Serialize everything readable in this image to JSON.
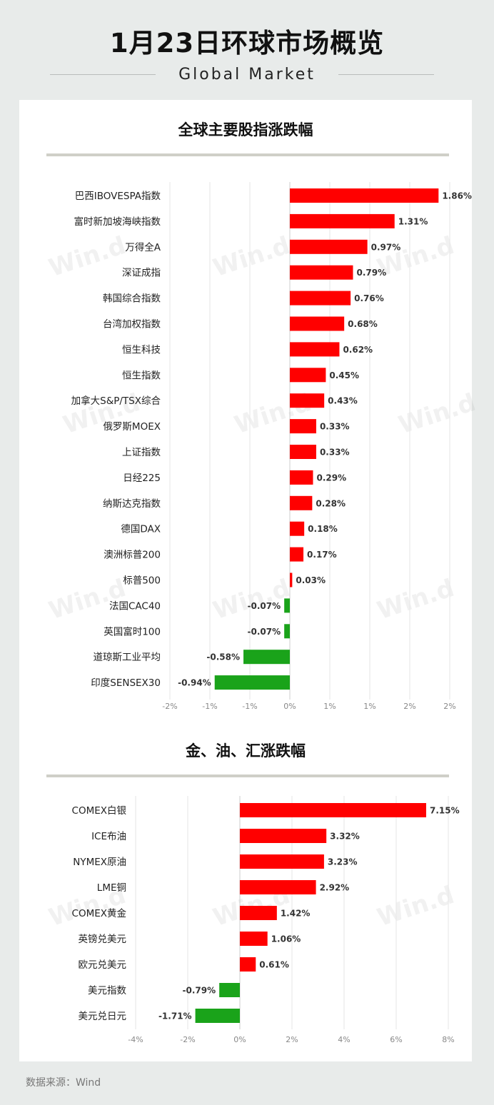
{
  "header": {
    "title": "1月23日环球市场概览",
    "subtitle": "Global Market"
  },
  "watermark": "Win.d",
  "source": "数据来源：Wind",
  "colors": {
    "positive": "#ff0000",
    "negative": "#1aa31a",
    "grid": "#e6e6e6"
  },
  "chart_data": [
    {
      "type": "bar",
      "orientation": "horizontal",
      "title": "全球主要股指涨跌幅",
      "categories": [
        "巴西IBOVESPA指数",
        "富时新加坡海峡指数",
        "万得全A",
        "深证成指",
        "韩国综合指数",
        "台湾加权指数",
        "恒生科技",
        "恒生指数",
        "加拿大S&P/TSX综合",
        "俄罗斯MOEX",
        "上证指数",
        "日经225",
        "纳斯达克指数",
        "德国DAX",
        "澳洲标普200",
        "标普500",
        "法国CAC40",
        "英国富时100",
        "道琼斯工业平均",
        "印度SENSEX30"
      ],
      "values": [
        1.86,
        1.31,
        0.97,
        0.79,
        0.76,
        0.68,
        0.62,
        0.45,
        0.43,
        0.33,
        0.33,
        0.29,
        0.28,
        0.18,
        0.17,
        0.03,
        -0.07,
        -0.07,
        -0.58,
        -0.94
      ],
      "value_labels": [
        "1.86%",
        "1.31%",
        "0.97%",
        "0.79%",
        "0.76%",
        "0.68%",
        "0.62%",
        "0.45%",
        "0.43%",
        "0.33%",
        "0.33%",
        "0.29%",
        "0.28%",
        "0.18%",
        "0.17%",
        "0.03%",
        "-0.07%",
        "-0.07%",
        "-0.58%",
        "-0.94%"
      ],
      "xlim": [
        -1.5,
        2.0
      ],
      "tick_values": [
        -1.5,
        -1.0,
        -0.5,
        0,
        0.5,
        1.0,
        1.5,
        2.0
      ],
      "tick_labels": [
        "-2%",
        "-1%",
        "-1%",
        "0%",
        "1%",
        "1%",
        "2%",
        "2%"
      ]
    },
    {
      "type": "bar",
      "orientation": "horizontal",
      "title": "金、油、汇涨跌幅",
      "categories": [
        "COMEX白银",
        "ICE布油",
        "NYMEX原油",
        "LME铜",
        "COMEX黄金",
        "英镑兑美元",
        "欧元兑美元",
        "美元指数",
        "美元兑日元"
      ],
      "values": [
        7.15,
        3.32,
        3.23,
        2.92,
        1.42,
        1.06,
        0.61,
        -0.79,
        -1.71
      ],
      "value_labels": [
        "7.15%",
        "3.32%",
        "3.23%",
        "2.92%",
        "1.42%",
        "1.06%",
        "0.61%",
        "-0.79%",
        "-1.71%"
      ],
      "xlim": [
        -4,
        8
      ],
      "tick_values": [
        -4,
        -2,
        0,
        2,
        4,
        6,
        8
      ],
      "tick_labels": [
        "-4%",
        "-2%",
        "0%",
        "2%",
        "4%",
        "6%",
        "8%"
      ]
    }
  ]
}
